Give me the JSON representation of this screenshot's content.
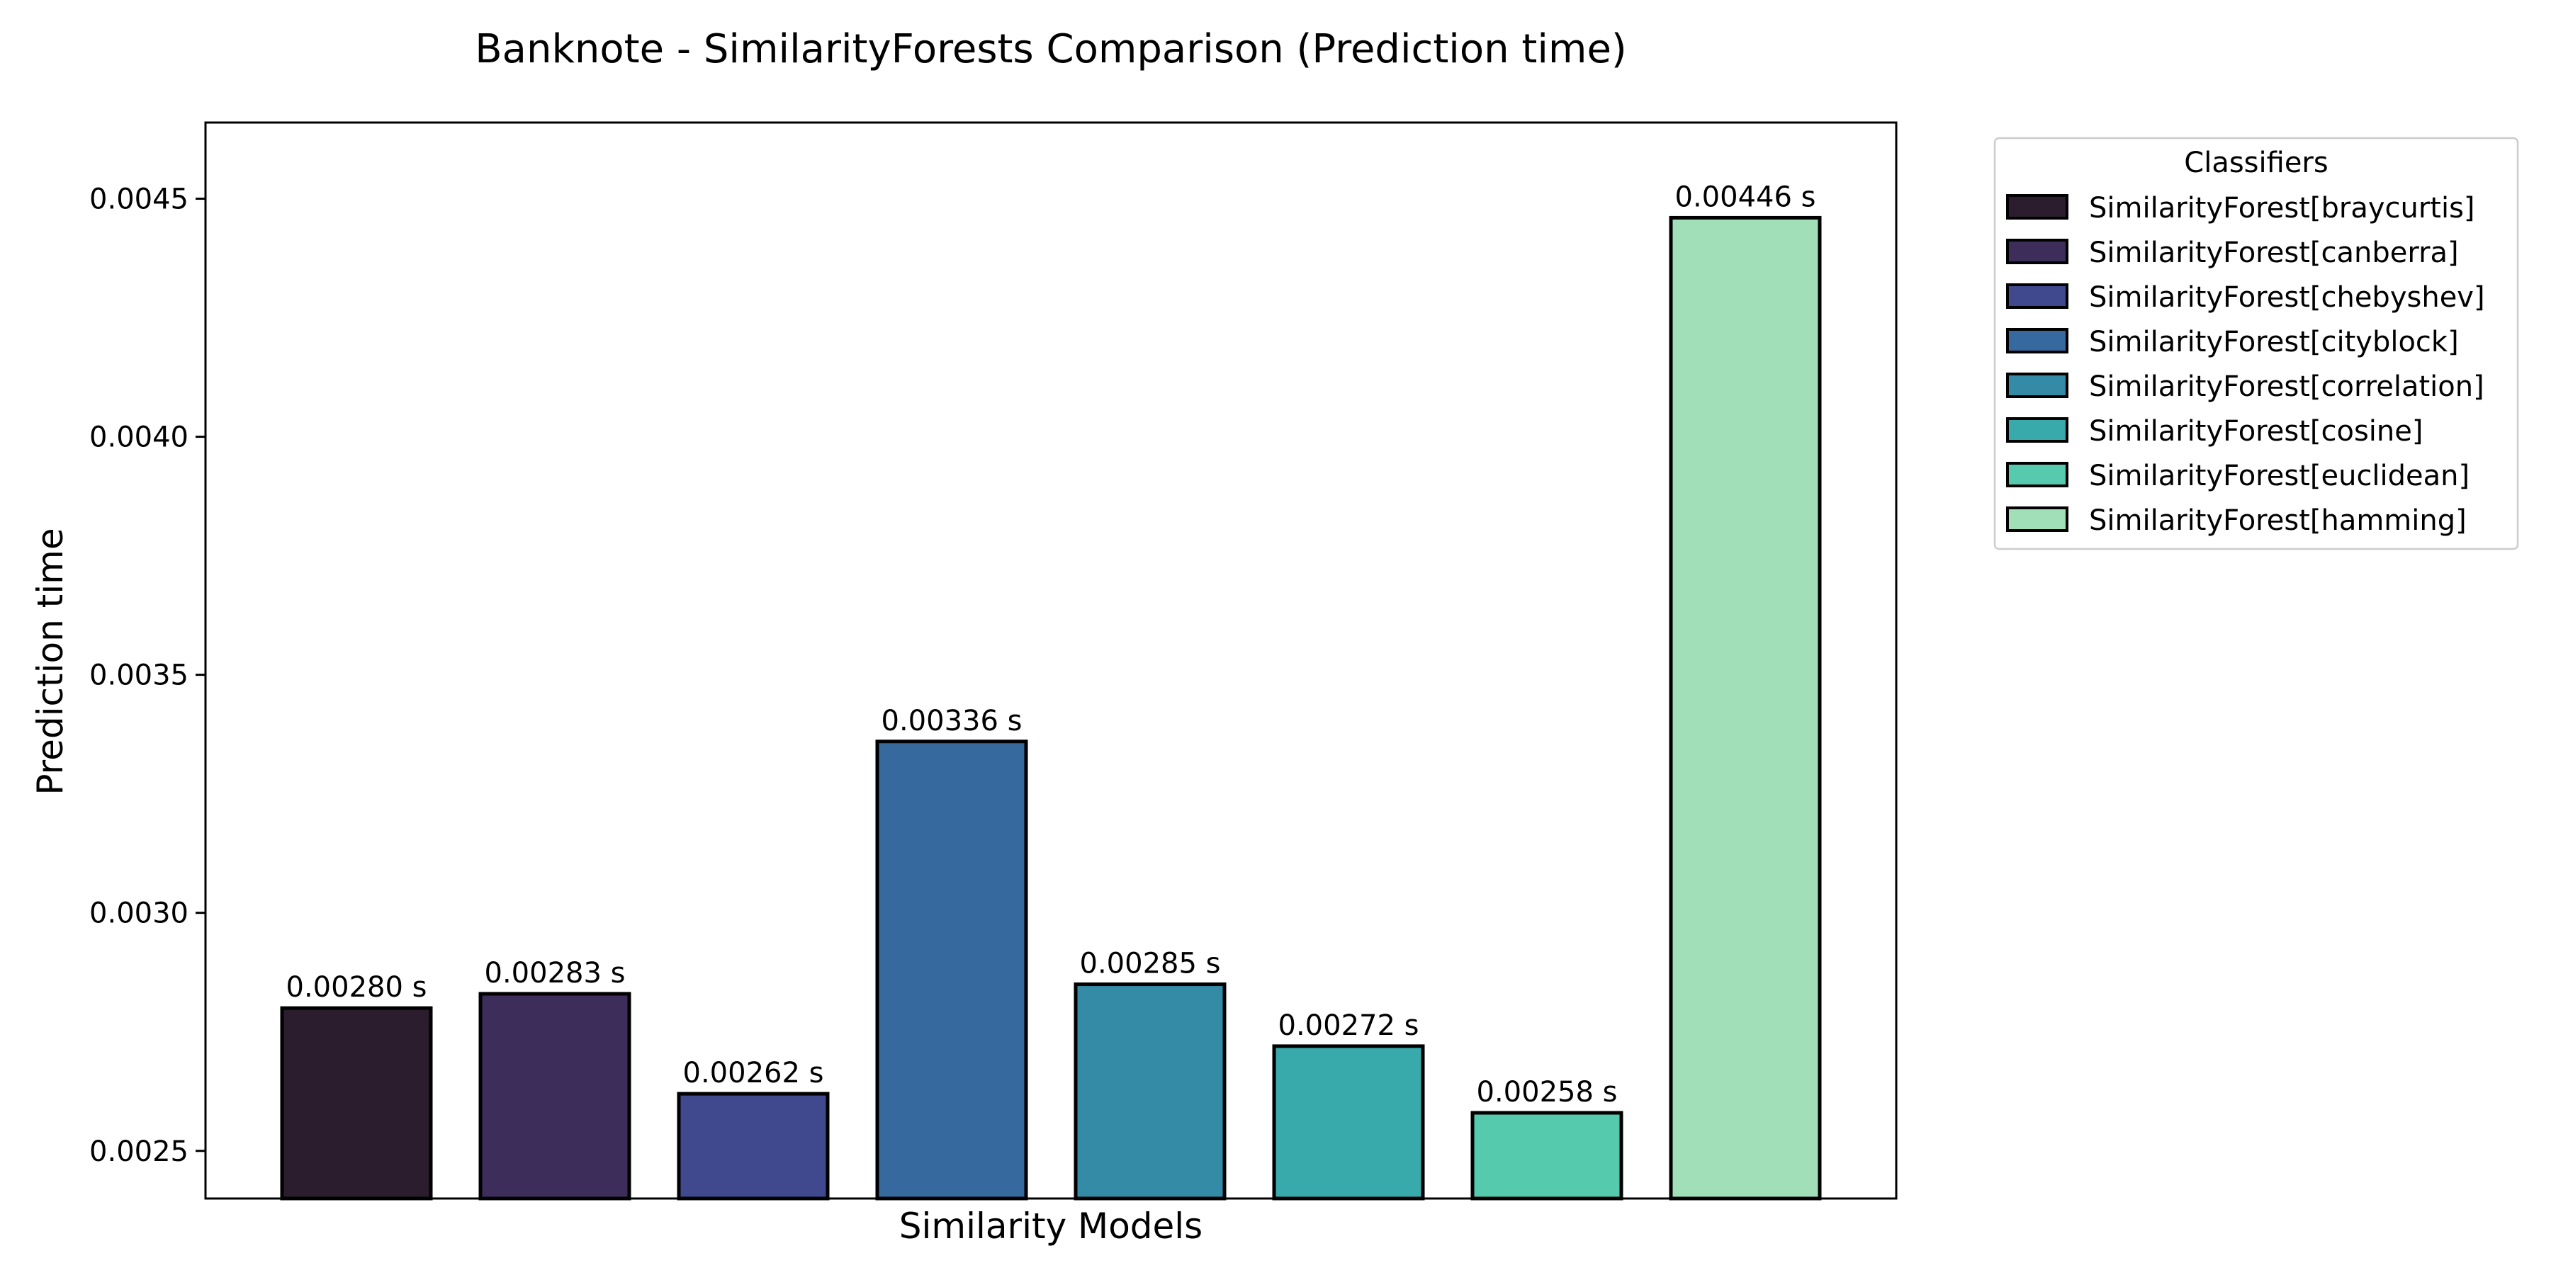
{
  "chart_data": {
    "type": "bar",
    "title": "Banknote - SimilarityForests Comparison (Prediction time)",
    "xlabel": "Similarity Models",
    "ylabel": "Prediction time",
    "ylim": [
      0.0024,
      0.00466
    ],
    "yticks": [
      0.0025,
      0.003,
      0.0035,
      0.004,
      0.0045
    ],
    "ytick_labels": [
      "0.0025",
      "0.0030",
      "0.0035",
      "0.0040",
      "0.0045"
    ],
    "grid": false,
    "legend": {
      "title": "Classifiers",
      "placement": "outside-top-right"
    },
    "categories": [
      "SimilarityForest[braycurtis]",
      "SimilarityForest[canberra]",
      "SimilarityForest[chebyshev]",
      "SimilarityForest[cityblock]",
      "SimilarityForest[correlation]",
      "SimilarityForest[cosine]",
      "SimilarityForest[euclidean]",
      "SimilarityForest[hamming]"
    ],
    "values": [
      0.0028,
      0.00283,
      0.00262,
      0.00336,
      0.00285,
      0.00272,
      0.00258,
      0.00446
    ],
    "value_labels": [
      "0.00280 s",
      "0.00283 s",
      "0.00262 s",
      "0.00336 s",
      "0.00285 s",
      "0.00272 s",
      "0.00258 s",
      "0.00446 s"
    ],
    "colors": [
      "#2b1c2e",
      "#3c2d5b",
      "#40498e",
      "#366a9f",
      "#348ba6",
      "#38aaac",
      "#55caad",
      "#a1dfb9"
    ],
    "edge_color": "#000000"
  }
}
